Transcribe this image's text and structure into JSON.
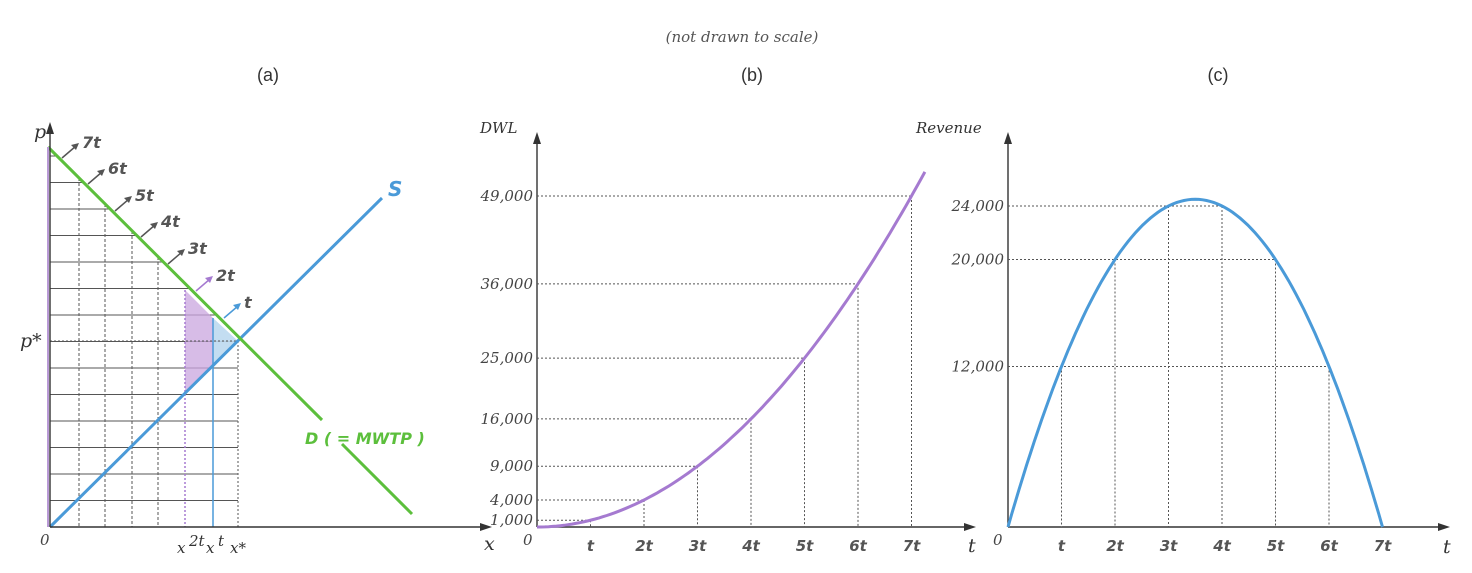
{
  "note": "(not drawn to scale)",
  "panels": {
    "a": {
      "label": "(a)",
      "y_axis": "p",
      "x_axis": "x",
      "origin": "0",
      "p_star": "p*",
      "x_labels": [
        "x",
        "2t",
        "x",
        "t",
        "x*"
      ],
      "supply_label": "S",
      "demand_label": "D ( = MWTP )",
      "tax_labels": [
        "7t",
        "6t",
        "5t",
        "4t",
        "3t",
        "2t",
        "t"
      ]
    },
    "b": {
      "label": "(b)",
      "y_axis": "DWL",
      "x_axis": "t",
      "origin": "0"
    },
    "c": {
      "label": "(c)",
      "y_axis": "Revenue",
      "x_axis": "t",
      "origin": "0"
    }
  },
  "colors": {
    "supply": "#4a9ad8",
    "demand": "#5cbf3c",
    "dwl_curve": "#a57ad0",
    "revenue_curve": "#4a9ad8",
    "dwl_2t": "#c9a6df",
    "dwl_t": "#bcd9ef"
  },
  "chart_data": [
    {
      "type": "line",
      "title": "(b)",
      "xlabel": "t",
      "ylabel": "DWL",
      "categories": [
        "0",
        "t",
        "2t",
        "3t",
        "4t",
        "5t",
        "6t",
        "7t"
      ],
      "x": [
        0,
        1,
        2,
        3,
        4,
        5,
        6,
        7
      ],
      "y": [
        0,
        1000,
        4000,
        9000,
        16000,
        25000,
        36000,
        49000
      ],
      "ytick_labels": [
        "1,000",
        "4,000",
        "9,000",
        "16,000",
        "25,000",
        "36,000",
        "49,000"
      ],
      "yticks": [
        1000,
        4000,
        9000,
        16000,
        25000,
        36000,
        49000
      ],
      "xlim": [
        0,
        7.5
      ],
      "ylim": [
        0,
        52000
      ],
      "grid": "dotted guides"
    },
    {
      "type": "line",
      "title": "(c)",
      "xlabel": "t",
      "ylabel": "Revenue",
      "categories": [
        "0",
        "t",
        "2t",
        "3t",
        "4t",
        "5t",
        "6t",
        "7t"
      ],
      "x": [
        0,
        1,
        2,
        3,
        4,
        5,
        6,
        7
      ],
      "y": [
        0,
        12000,
        20000,
        24000,
        24000,
        20000,
        12000,
        0
      ],
      "ytick_labels": [
        "12,000",
        "20,000",
        "24,000"
      ],
      "yticks": [
        12000,
        20000,
        24000
      ],
      "peak": {
        "x": 3.5,
        "y": 24500
      },
      "xlim": [
        0,
        8
      ],
      "ylim": [
        0,
        28000
      ],
      "grid": "dotted guides"
    }
  ]
}
